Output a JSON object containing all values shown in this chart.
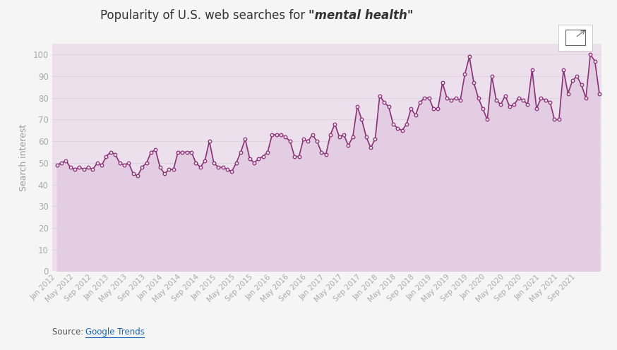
{
  "title_plain": "Popularity of U.S. web searches for ",
  "title_italic": "\"mental health\"",
  "ylabel": "Search interest",
  "background_outer": "#f5f5f5",
  "background_inner": "#ede0ed",
  "line_color": "#8b3175",
  "fill_color": "#e2cde2",
  "marker_facecolor": "#ede0ed",
  "grid_color": "#ddd5dd",
  "tick_label_color": "#aaaaaa",
  "axis_label_color": "#999999",
  "title_color": "#333333",
  "source_color": "#555555",
  "link_color": "#1565c0",
  "ylim": [
    0,
    105
  ],
  "yticks": [
    0,
    10,
    20,
    30,
    40,
    50,
    60,
    70,
    80,
    90,
    100
  ],
  "x_tick_labels": [
    "Jan 2012",
    "May 2012",
    "Sep 2012",
    "Jan 2013",
    "May 2013",
    "Sep 2013",
    "Jan 2014",
    "May 2014",
    "Sep 2014",
    "Jan 2015",
    "May 2015",
    "Sep 2015",
    "Jan 2016",
    "May 2016",
    "Sep 2016",
    "Jan 2017",
    "May 2017",
    "Sep 2017",
    "Jan 2018",
    "May 2018",
    "Sep 2018",
    "Jan 2019",
    "May 2019",
    "Sep 2019",
    "Jan 2020",
    "May 2020",
    "Sep 2020",
    "Jan 2021",
    "May 2021",
    "Sep 2021"
  ],
  "x_tick_positions": [
    0,
    4,
    8,
    12,
    16,
    20,
    24,
    28,
    32,
    36,
    40,
    44,
    48,
    52,
    56,
    60,
    64,
    68,
    72,
    76,
    80,
    84,
    88,
    92,
    96,
    100,
    104,
    108,
    112,
    116
  ],
  "values": [
    49,
    50,
    51,
    48,
    47,
    48,
    47,
    48,
    47,
    50,
    49,
    53,
    55,
    54,
    50,
    49,
    50,
    45,
    44,
    48,
    50,
    55,
    56,
    48,
    45,
    47,
    47,
    55,
    55,
    55,
    55,
    50,
    48,
    51,
    60,
    50,
    48,
    48,
    47,
    46,
    50,
    55,
    61,
    52,
    50,
    52,
    53,
    55,
    63,
    63,
    63,
    62,
    60,
    53,
    53,
    61,
    60,
    63,
    60,
    55,
    54,
    63,
    68,
    62,
    63,
    58,
    62,
    76,
    70,
    62,
    57,
    61,
    81,
    78,
    76,
    68,
    66,
    65,
    68,
    75,
    72,
    78,
    80,
    80,
    75,
    75,
    87,
    80,
    79,
    80,
    79,
    91,
    99,
    87,
    80,
    75,
    70,
    90,
    79,
    77,
    81,
    76,
    77,
    80,
    79,
    77,
    93,
    75,
    80,
    79,
    78,
    70,
    70,
    93,
    82,
    88,
    90,
    86,
    80,
    100,
    97,
    82
  ]
}
